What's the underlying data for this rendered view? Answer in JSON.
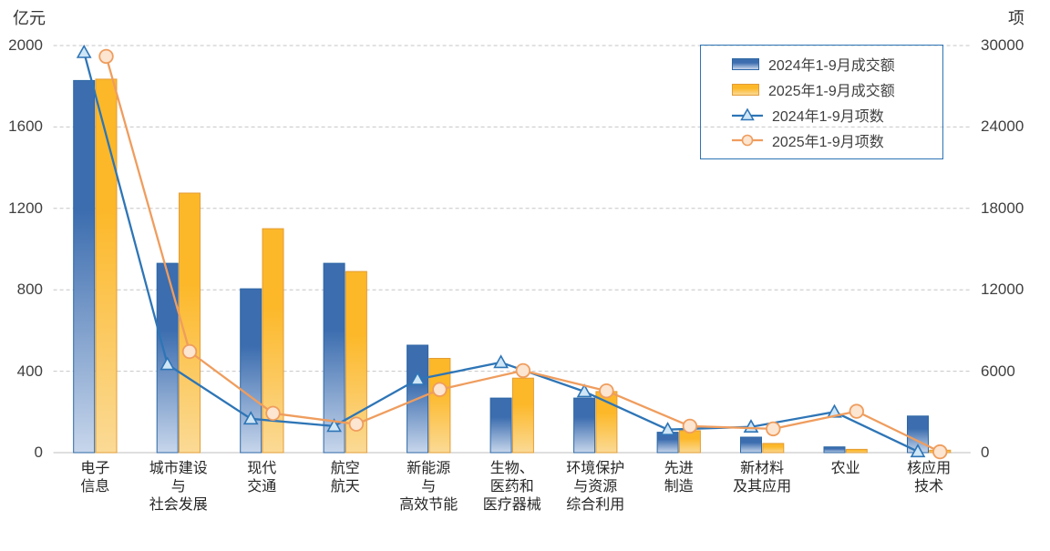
{
  "chart_data": {
    "type": "bar",
    "subtype": "combo-bar-line-dual-axis",
    "title": "",
    "categories": [
      "电子信息",
      "城市建设与社会发展",
      "现代交通",
      "航空航天",
      "新能源与高效节能",
      "生物、医药和医疗器械",
      "环境保护与资源综合利用",
      "先进制造",
      "新材料及其应用",
      "农业",
      "核应用技术"
    ],
    "categories_display": [
      [
        "电子",
        "信息"
      ],
      [
        "城市建设",
        "与",
        "社会发展"
      ],
      [
        "现代",
        "交通"
      ],
      [
        "航空",
        "航天"
      ],
      [
        "新能源",
        "与",
        "高效节能"
      ],
      [
        "生物、",
        "医药和",
        "医疗器械"
      ],
      [
        "环境保护",
        "与资源",
        "综合利用"
      ],
      [
        "先进",
        "制造"
      ],
      [
        "新材料",
        "及其应用"
      ],
      [
        "农业"
      ],
      [
        "核应用",
        "技术"
      ]
    ],
    "series": [
      {
        "name": "2024年1-9月成交额",
        "type": "bar",
        "axis": "left",
        "color": "#3C6DAF",
        "gradient_bottom": "#C7D6EB",
        "border": "#2C67A5",
        "values": [
          1828,
          930,
          805,
          930,
          528,
          268,
          268,
          100,
          76,
          28,
          180
        ]
      },
      {
        "name": "2025年1-9月成交额",
        "type": "bar",
        "axis": "left",
        "color": "#FCB829",
        "gradient_bottom": "#FBDA96",
        "border": "#E39C36",
        "values": [
          1835,
          1275,
          1100,
          890,
          463,
          366,
          300,
          108,
          45,
          16,
          12
        ]
      },
      {
        "name": "2024年1-9月项数",
        "type": "line",
        "axis": "right",
        "color": "#2E75B6",
        "marker": "triangle",
        "marker_fill": "#CFE6F6",
        "values": [
          29500,
          6500,
          2500,
          1950,
          5400,
          6650,
          4500,
          1700,
          1900,
          3000,
          80
        ]
      },
      {
        "name": "2025年1-9月项数",
        "type": "line",
        "axis": "right",
        "color": "#EF9D5E",
        "marker": "circle",
        "marker_fill": "#FCE5D1",
        "values": [
          29200,
          7450,
          2900,
          2100,
          4650,
          6050,
          4550,
          1950,
          1750,
          3050,
          60
        ]
      }
    ],
    "left_axis": {
      "unit": "亿元",
      "min": 0,
      "max": 2000,
      "tick_labels": [
        "0",
        "400",
        "800",
        "1200",
        "1600",
        "2000"
      ],
      "ticks": [
        0,
        400,
        800,
        1200,
        1600,
        2000
      ]
    },
    "right_axis": {
      "unit": "项",
      "min": 0,
      "max": 30000,
      "tick_labels": [
        "0",
        "6000",
        "12000",
        "18000",
        "24000",
        "30000"
      ],
      "ticks": [
        0,
        6000,
        12000,
        18000,
        24000,
        30000
      ]
    },
    "grid": {
      "horizontal": "dashed",
      "color": "#C6C6C6",
      "baseline_color": "#BFBFBF"
    },
    "legend": {
      "position": "top-right",
      "border_color": "#2E74B5"
    }
  }
}
